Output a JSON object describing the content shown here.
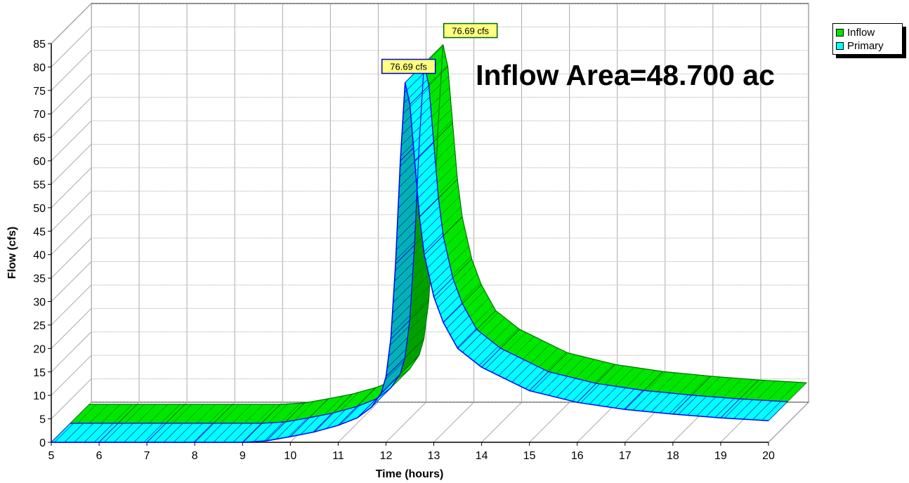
{
  "chart_data": {
    "type": "area",
    "title": "",
    "annotation": "Inflow Area=48.700 ac",
    "xlabel": "Time  (hours)",
    "ylabel": "Flow  (cfs)",
    "xlim": [
      5,
      20
    ],
    "ylim": [
      0,
      85
    ],
    "x_ticks": [
      5,
      6,
      7,
      8,
      9,
      10,
      11,
      12,
      13,
      14,
      15,
      16,
      17,
      18,
      19,
      20
    ],
    "y_ticks": [
      0,
      5,
      10,
      15,
      20,
      25,
      30,
      35,
      40,
      45,
      50,
      55,
      60,
      65,
      70,
      75,
      80,
      85
    ],
    "grid": true,
    "legend_position": "top-right",
    "series": [
      {
        "name": "Inflow",
        "color": "#00e600",
        "peak_label": "76.69 cfs",
        "x": [
          5,
          6,
          7,
          8,
          9,
          9.5,
          10,
          10.5,
          11,
          11.4,
          11.7,
          11.9,
          12.0,
          12.1,
          12.2,
          12.3,
          12.4,
          12.5,
          12.6,
          12.7,
          12.8,
          13.0,
          13.2,
          13.5,
          14,
          15,
          16,
          17,
          18,
          19,
          20
        ],
        "y": [
          0,
          0,
          0,
          0,
          0,
          0.3,
          1.2,
          2.2,
          3.6,
          5.2,
          7.5,
          10.5,
          14,
          22,
          38,
          60,
          76.69,
          72,
          60,
          48,
          40,
          31,
          25.5,
          20,
          16,
          11,
          8.5,
          7,
          6,
          5.2,
          4.6
        ]
      },
      {
        "name": "Primary",
        "color": "#00ffff",
        "peak_label": "76.69 cfs",
        "x": [
          5,
          6,
          7,
          8,
          9,
          9.5,
          10,
          10.5,
          11,
          11.4,
          11.7,
          11.9,
          12.0,
          12.1,
          12.2,
          12.3,
          12.4,
          12.5,
          12.6,
          12.7,
          12.8,
          13.0,
          13.2,
          13.5,
          14,
          15,
          16,
          17,
          18,
          19,
          20
        ],
        "y": [
          0,
          0,
          0,
          0,
          0,
          0.3,
          1.2,
          2.2,
          3.6,
          5.2,
          7.5,
          10.5,
          14,
          22,
          38,
          60,
          76.69,
          72,
          60,
          48,
          40,
          31,
          25.5,
          20,
          16,
          11,
          8.5,
          7,
          6,
          5.2,
          4.6
        ]
      }
    ]
  }
}
